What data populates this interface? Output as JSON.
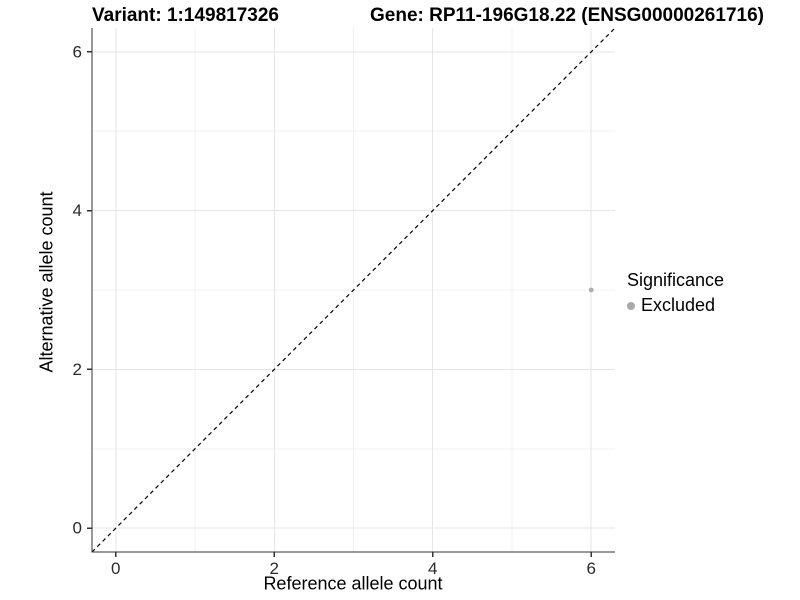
{
  "header": {
    "variant_title": "Variant: 1:149817326",
    "gene_title": "Gene: RP11-196G18.22 (ENSG00000261716)"
  },
  "chart_data": {
    "type": "scatter",
    "xlabel": "Reference allele count",
    "ylabel": "Alternative allele count",
    "xlim": [
      -0.3,
      6.3
    ],
    "ylim": [
      -0.3,
      6.3
    ],
    "xticks": [
      0,
      2,
      4,
      6
    ],
    "yticks": [
      0,
      2,
      4,
      6
    ],
    "x_minor_ticks": [
      1,
      3,
      5
    ],
    "y_minor_ticks": [
      1,
      3,
      5
    ],
    "grid": "major and minor, light gray on white",
    "identity_line": {
      "equation": "y = x",
      "style": "dashed",
      "color": "#000000"
    },
    "series": [
      {
        "name": "Excluded",
        "color": "#afafaf",
        "point_radius": 2.4,
        "points": [
          {
            "x": 6,
            "y": 3
          }
        ]
      }
    ],
    "legend": {
      "title": "Significance",
      "position": "right",
      "items": [
        {
          "label": "Excluded",
          "color": "#a9a9a9"
        }
      ]
    }
  },
  "colors": {
    "background": "#ffffff",
    "axis_line": "#333333",
    "tick_mark": "#333333",
    "major_grid": "#e5e5e5",
    "minor_grid": "#f0f0f0",
    "tick_label": "#2b2b2b"
  }
}
